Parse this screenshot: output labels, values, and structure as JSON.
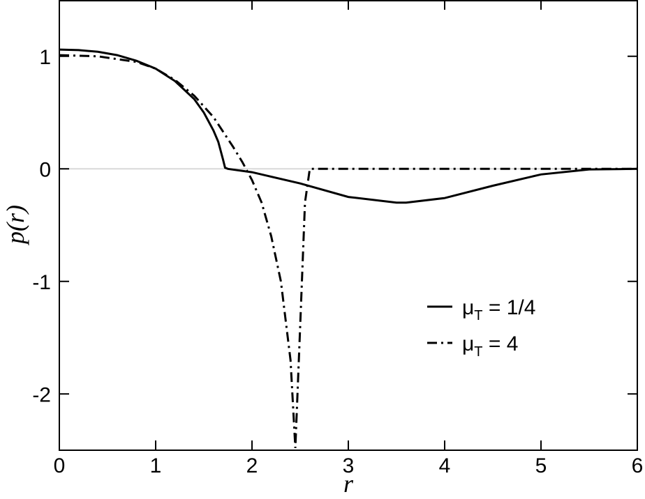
{
  "chart_data": {
    "type": "line",
    "xlabel": "r",
    "ylabel": "p(r)",
    "xlim": [
      0,
      6
    ],
    "ylim": [
      -2.5,
      1.5
    ],
    "xticks": [
      0,
      1,
      2,
      3,
      4,
      5,
      6
    ],
    "yticks": [
      -2,
      -1,
      0,
      1
    ],
    "reference_line": {
      "y": 0,
      "color": "#d9d9d9"
    },
    "legend": "center-right",
    "series": [
      {
        "name": "μT = 1/4",
        "color": "#000000",
        "dash": "solid",
        "x": [
          0,
          0.2,
          0.4,
          0.6,
          0.8,
          1.0,
          1.2,
          1.4,
          1.5,
          1.6,
          1.65,
          1.7,
          1.72,
          1.75,
          2.0,
          2.5,
          3.0,
          3.5,
          3.6,
          4.0,
          4.5,
          5.0,
          5.5,
          6.0
        ],
        "values": [
          1.06,
          1.055,
          1.04,
          1.01,
          0.96,
          0.89,
          0.78,
          0.62,
          0.5,
          0.34,
          0.24,
          0.08,
          0.01,
          0.0,
          -0.03,
          -0.13,
          -0.25,
          -0.3,
          -0.3,
          -0.26,
          -0.15,
          -0.05,
          -0.005,
          0.0
        ]
      },
      {
        "name": "μT = 4",
        "color": "#000000",
        "dash": "dashdot",
        "x": [
          0,
          0.4,
          0.8,
          1.0,
          1.2,
          1.4,
          1.6,
          1.8,
          1.9,
          2.0,
          2.1,
          2.2,
          2.3,
          2.4,
          2.45,
          2.5,
          2.55,
          2.6,
          3.0,
          4.0,
          5.0,
          6.0
        ],
        "values": [
          1.01,
          1.0,
          0.95,
          0.89,
          0.79,
          0.65,
          0.46,
          0.2,
          0.06,
          -0.1,
          -0.3,
          -0.6,
          -1.0,
          -1.7,
          -2.48,
          -1.4,
          -0.3,
          0.0,
          0.0,
          0.0,
          0.0,
          0.0
        ]
      }
    ]
  }
}
